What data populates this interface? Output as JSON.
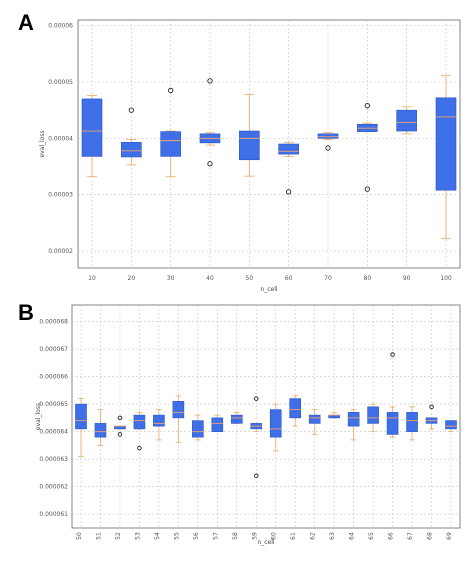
{
  "panels": {
    "a": {
      "letter": "A"
    },
    "b": {
      "letter": "B"
    }
  },
  "colors": {
    "box_fill": "#3f6fe6",
    "box_edge": "#2b55c9",
    "median": "#f0a070",
    "whisker": "#e8b070",
    "flier": "#222222",
    "grid": "#c8c8c8",
    "frame": "#666666"
  },
  "chart_data": [
    {
      "type": "box",
      "xlabel": "n_cell",
      "ylabel": "eval_loss",
      "ylim": [
        1.7e-05,
        6.1e-05
      ],
      "yticks": [
        2e-05,
        3e-05,
        4e-05,
        5e-05,
        6e-05
      ],
      "ytick_labels": [
        "0.00002",
        "0.00003",
        "0.00004",
        "0.00005",
        "0.00006"
      ],
      "grid": true,
      "categories": [
        "10",
        "20",
        "30",
        "40",
        "50",
        "60",
        "70",
        "80",
        "90",
        "100"
      ],
      "boxes": [
        {
          "whislo": 3.32e-05,
          "q1": 3.68e-05,
          "med": 4.13e-05,
          "q3": 4.7e-05,
          "whishi": 4.76e-05,
          "fliers": []
        },
        {
          "whislo": 3.53e-05,
          "q1": 3.67e-05,
          "med": 3.78e-05,
          "q3": 3.93e-05,
          "whishi": 3.98e-05,
          "fliers": [
            4.5e-05
          ]
        },
        {
          "whislo": 3.32e-05,
          "q1": 3.68e-05,
          "med": 3.96e-05,
          "q3": 4.12e-05,
          "whishi": 4.13e-05,
          "fliers": [
            4.85e-05
          ]
        },
        {
          "whislo": 3.88e-05,
          "q1": 3.92e-05,
          "med": 4e-05,
          "q3": 4.08e-05,
          "whishi": 4.1e-05,
          "fliers": [
            5.02e-05,
            3.55e-05
          ]
        },
        {
          "whislo": 3.33e-05,
          "q1": 3.62e-05,
          "med": 4e-05,
          "q3": 4.13e-05,
          "whishi": 4.78e-05,
          "fliers": []
        },
        {
          "whislo": 3.68e-05,
          "q1": 3.72e-05,
          "med": 3.77e-05,
          "q3": 3.9e-05,
          "whishi": 3.93e-05,
          "fliers": [
            3.05e-05
          ]
        },
        {
          "whislo": 3.98e-05,
          "q1": 4e-05,
          "med": 4.03e-05,
          "q3": 4.08e-05,
          "whishi": 4.1e-05,
          "fliers": [
            3.83e-05
          ]
        },
        {
          "whislo": 4.12e-05,
          "q1": 4.12e-05,
          "med": 4.18e-05,
          "q3": 4.25e-05,
          "whishi": 4.27e-05,
          "fliers": [
            4.58e-05,
            3.1e-05
          ]
        },
        {
          "whislo": 4.08e-05,
          "q1": 4.13e-05,
          "med": 4.28e-05,
          "q3": 4.5e-05,
          "whishi": 4.56e-05,
          "fliers": []
        },
        {
          "whislo": 2.22e-05,
          "q1": 3.08e-05,
          "med": 4.38e-05,
          "q3": 4.72e-05,
          "whishi": 5.12e-05,
          "fliers": []
        }
      ]
    },
    {
      "type": "box",
      "xlabel": "n_cell",
      "ylabel": "eval_loss",
      "ylim": [
        6.05e-05,
        6.86e-05
      ],
      "yticks": [
        6.1e-05,
        6.2e-05,
        6.3e-05,
        6.4e-05,
        6.5e-05,
        6.6e-05,
        6.7e-05,
        6.8e-05
      ],
      "ytick_labels": [
        "0.000061",
        "0.000062",
        "0.000063",
        "0.000064",
        "0.000065",
        "0.000066",
        "0.000067",
        "0.000068"
      ],
      "grid": true,
      "categories": [
        "50",
        "51",
        "52",
        "53",
        "54",
        "55",
        "56",
        "57",
        "58",
        "59",
        "60",
        "61",
        "62",
        "63",
        "64",
        "65",
        "66",
        "67",
        "68",
        "69"
      ],
      "boxes": [
        {
          "whislo": 6.31e-05,
          "q1": 6.41e-05,
          "med": 6.44e-05,
          "q3": 6.5e-05,
          "whishi": 6.52e-05,
          "fliers": []
        },
        {
          "whislo": 6.35e-05,
          "q1": 6.38e-05,
          "med": 6.4e-05,
          "q3": 6.43e-05,
          "whishi": 6.48e-05,
          "fliers": []
        },
        {
          "whislo": 6.41e-05,
          "q1": 6.41e-05,
          "med": 6.42e-05,
          "q3": 6.42e-05,
          "whishi": 6.42e-05,
          "fliers": [
            6.45e-05,
            6.39e-05
          ]
        },
        {
          "whislo": 6.41e-05,
          "q1": 6.41e-05,
          "med": 6.44e-05,
          "q3": 6.46e-05,
          "whishi": 6.47e-05,
          "fliers": [
            6.34e-05
          ]
        },
        {
          "whislo": 6.37e-05,
          "q1": 6.42e-05,
          "med": 6.43e-05,
          "q3": 6.46e-05,
          "whishi": 6.48e-05,
          "fliers": []
        },
        {
          "whislo": 6.36e-05,
          "q1": 6.45e-05,
          "med": 6.47e-05,
          "q3": 6.51e-05,
          "whishi": 6.53e-05,
          "fliers": []
        },
        {
          "whislo": 6.37e-05,
          "q1": 6.38e-05,
          "med": 6.4e-05,
          "q3": 6.44e-05,
          "whishi": 6.46e-05,
          "fliers": []
        },
        {
          "whislo": 6.4e-05,
          "q1": 6.4e-05,
          "med": 6.43e-05,
          "q3": 6.45e-05,
          "whishi": 6.46e-05,
          "fliers": []
        },
        {
          "whislo": 6.43e-05,
          "q1": 6.43e-05,
          "med": 6.45e-05,
          "q3": 6.46e-05,
          "whishi": 6.47e-05,
          "fliers": []
        },
        {
          "whislo": 6.4e-05,
          "q1": 6.41e-05,
          "med": 6.42e-05,
          "q3": 6.43e-05,
          "whishi": 6.43e-05,
          "fliers": [
            6.52e-05,
            6.24e-05
          ]
        },
        {
          "whislo": 6.33e-05,
          "q1": 6.38e-05,
          "med": 6.41e-05,
          "q3": 6.48e-05,
          "whishi": 6.5e-05,
          "fliers": []
        },
        {
          "whislo": 6.42e-05,
          "q1": 6.45e-05,
          "med": 6.48e-05,
          "q3": 6.52e-05,
          "whishi": 6.53e-05,
          "fliers": []
        },
        {
          "whislo": 6.39e-05,
          "q1": 6.43e-05,
          "med": 6.45e-05,
          "q3": 6.46e-05,
          "whishi": 6.48e-05,
          "fliers": []
        },
        {
          "whislo": 6.45e-05,
          "q1": 6.45e-05,
          "med": 6.46e-05,
          "q3": 6.46e-05,
          "whishi": 6.47e-05,
          "fliers": []
        },
        {
          "whislo": 6.37e-05,
          "q1": 6.42e-05,
          "med": 6.45e-05,
          "q3": 6.47e-05,
          "whishi": 6.48e-05,
          "fliers": []
        },
        {
          "whislo": 6.4e-05,
          "q1": 6.43e-05,
          "med": 6.45e-05,
          "q3": 6.49e-05,
          "whishi": 6.5e-05,
          "fliers": []
        },
        {
          "whislo": 6.38e-05,
          "q1": 6.39e-05,
          "med": 6.45e-05,
          "q3": 6.47e-05,
          "whishi": 6.49e-05,
          "fliers": [
            6.68e-05
          ]
        },
        {
          "whislo": 6.37e-05,
          "q1": 6.4e-05,
          "med": 6.44e-05,
          "q3": 6.47e-05,
          "whishi": 6.49e-05,
          "fliers": []
        },
        {
          "whislo": 6.41e-05,
          "q1": 6.43e-05,
          "med": 6.44e-05,
          "q3": 6.45e-05,
          "whishi": 6.45e-05,
          "fliers": [
            6.49e-05
          ]
        },
        {
          "whislo": 6.4e-05,
          "q1": 6.41e-05,
          "med": 6.42e-05,
          "q3": 6.44e-05,
          "whishi": 6.44e-05,
          "fliers": []
        }
      ]
    }
  ]
}
